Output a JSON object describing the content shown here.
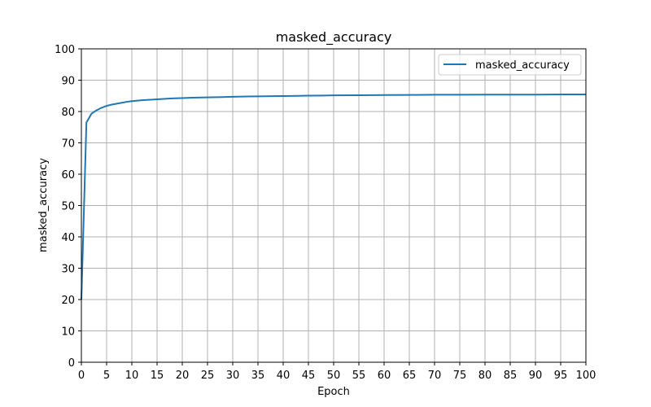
{
  "chart_data": {
    "type": "line",
    "title": "masked_accuracy",
    "xlabel": "Epoch",
    "ylabel": "masked_accuracy",
    "xlim": [
      0,
      100
    ],
    "ylim": [
      0,
      100
    ],
    "xticks": [
      "0",
      "5",
      "10",
      "15",
      "20",
      "25",
      "30",
      "35",
      "40",
      "45",
      "50",
      "55",
      "60",
      "65",
      "70",
      "75",
      "80",
      "85",
      "90",
      "95",
      "100"
    ],
    "yticks": [
      "0",
      "10",
      "20",
      "30",
      "40",
      "50",
      "60",
      "70",
      "80",
      "90",
      "100"
    ],
    "grid": true,
    "legend_position": "top-right",
    "colors": {
      "series": "#1f77b4",
      "grid": "#b0b0b0"
    },
    "series": [
      {
        "name": "masked_accuracy",
        "x": [
          0,
          1,
          2,
          3,
          4,
          5,
          6,
          7,
          8,
          9,
          10,
          12,
          14,
          16,
          18,
          20,
          22,
          25,
          28,
          30,
          33,
          35,
          38,
          40,
          43,
          45,
          48,
          50,
          55,
          60,
          65,
          70,
          75,
          80,
          85,
          90,
          95,
          100
        ],
        "y": [
          20.0,
          76.5,
          79.3,
          80.4,
          81.2,
          81.8,
          82.2,
          82.5,
          82.8,
          83.1,
          83.3,
          83.6,
          83.8,
          84.0,
          84.2,
          84.3,
          84.4,
          84.5,
          84.6,
          84.7,
          84.8,
          84.85,
          84.9,
          84.95,
          85.0,
          85.05,
          85.1,
          85.15,
          85.2,
          85.25,
          85.3,
          85.35,
          85.35,
          85.4,
          85.4,
          85.4,
          85.45,
          85.45
        ]
      }
    ]
  }
}
